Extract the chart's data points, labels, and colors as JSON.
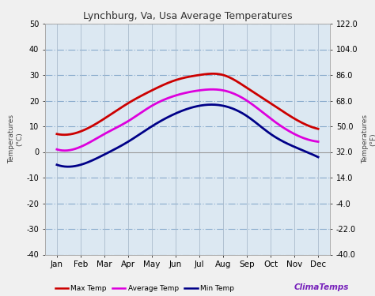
{
  "title": "Lynchburg, Va, Usa Average Temperatures",
  "months": [
    "Jan",
    "Feb",
    "Mar",
    "Apr",
    "May",
    "Jun",
    "Jul",
    "Aug",
    "Sep",
    "Oct",
    "Nov",
    "Dec"
  ],
  "max_temp": [
    7,
    8,
    13,
    19,
    24,
    28,
    30,
    30,
    25,
    19,
    13,
    9
  ],
  "avg_temp": [
    1,
    2,
    7,
    12,
    18,
    22,
    24,
    24,
    20,
    13,
    7,
    4
  ],
  "min_temp": [
    -5,
    -5,
    -1,
    4,
    10,
    15,
    18,
    18,
    14,
    7,
    2,
    -2
  ],
  "ylim_left": [
    -40,
    50
  ],
  "ylim_right": [
    -40.0,
    122.0
  ],
  "yticks_left": [
    -40,
    -30,
    -20,
    -10,
    0,
    10,
    20,
    30,
    40,
    50
  ],
  "yticks_right": [
    -40.0,
    -22.0,
    -4.0,
    14.0,
    32.0,
    50.0,
    68.0,
    86.0,
    104.0,
    122.0
  ],
  "ylabel_left": "T\ne\nm\np\ne\nr\na\nt\nu\nr\ne\ns\n\n(°\nC",
  "ylabel_right": "T\ne\nm\np\ne\nr\na\nt\nu\nr\ne\ns\n\n(°\nF",
  "max_color": "#cc0000",
  "avg_color": "#dd00dd",
  "min_color": "#000088",
  "grid_h_color": "#88aacc",
  "grid_v_color": "#aabbcc",
  "bg_color": "#f0f0f0",
  "plot_bg_color": "#dce8f2",
  "title_color": "#333333",
  "brand_text": "ClimaTemps",
  "brand_color": "#7722bb"
}
